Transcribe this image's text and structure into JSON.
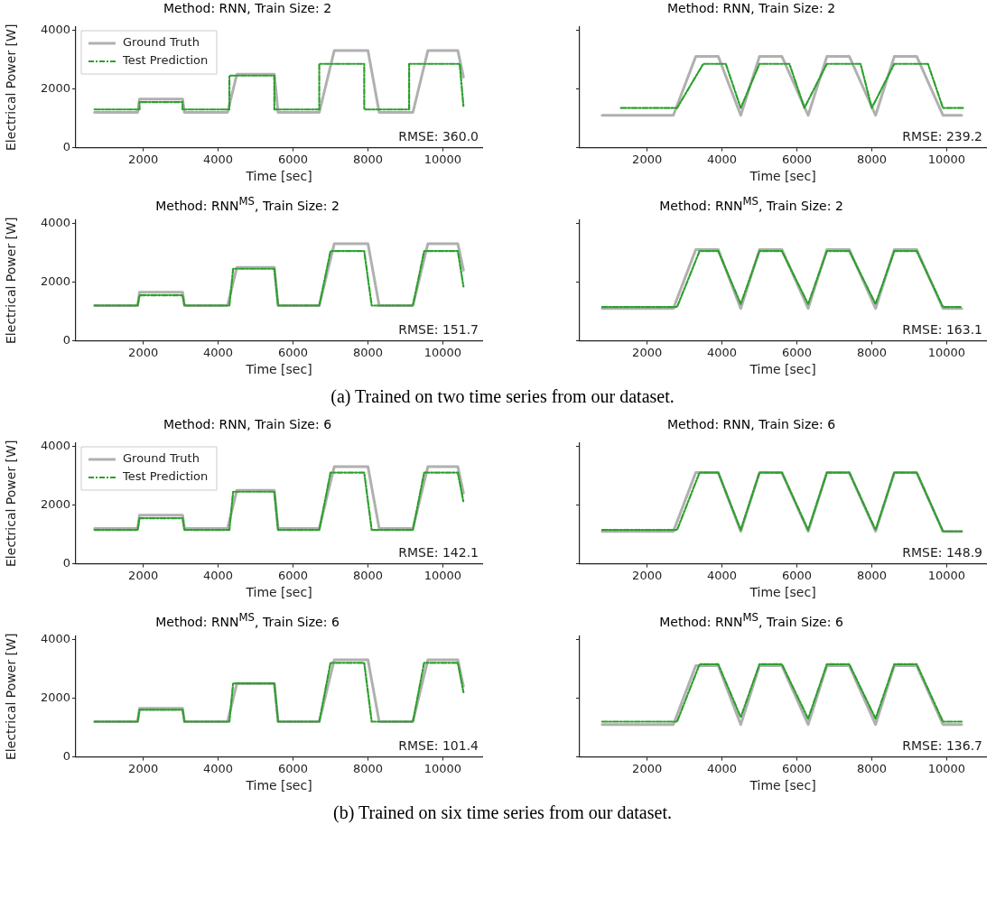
{
  "chart_data": [
    {
      "type": "line",
      "title": "Method: RNN, Train Size: 2",
      "xlabel": "Time [sec]",
      "ylabel": "Electrical Power [W]",
      "xlim": [
        200,
        11050
      ],
      "xticks": [
        2000,
        4000,
        6000,
        8000,
        10000
      ],
      "ylim": [
        0,
        4100
      ],
      "yticks": [
        0,
        2000,
        4000
      ],
      "grid": false,
      "legend": "top left",
      "annotations": [
        "RMSE: 360.0"
      ],
      "series": [
        {
          "name": "Ground Truth",
          "color": "#b0b0b0",
          "x": [
            700,
            1850,
            1900,
            3050,
            3100,
            4250,
            4500,
            5500,
            5600,
            6700,
            7100,
            8000,
            8300,
            9200,
            9600,
            10400,
            10550
          ],
          "values": [
            1200,
            1200,
            1650,
            1650,
            1200,
            1200,
            2500,
            2500,
            1200,
            1200,
            3300,
            3300,
            1200,
            1200,
            3300,
            3300,
            2400
          ]
        },
        {
          "name": "Test Prediction",
          "color": "#2ca02c",
          "line_style": "dashdot",
          "x": [
            700,
            1900,
            1900,
            3050,
            3050,
            4300,
            4300,
            5500,
            5500,
            6700,
            6700,
            7900,
            7900,
            9100,
            9100,
            10450,
            10550
          ],
          "values": [
            1300,
            1300,
            1550,
            1550,
            1300,
            1300,
            2450,
            2450,
            1300,
            1300,
            2850,
            2850,
            1300,
            1300,
            2850,
            2850,
            1400
          ]
        }
      ]
    },
    {
      "type": "line",
      "title": "Method: RNN, Train Size: 2",
      "xlabel": "Time [sec]",
      "xlim": [
        200,
        11050
      ],
      "xticks": [
        2000,
        4000,
        6000,
        8000,
        10000
      ],
      "ylim": [
        0,
        4100
      ],
      "yticks": [
        0,
        2000,
        4000
      ],
      "tick_labels": "x",
      "grid": false,
      "annotations": [
        "RMSE: 239.2"
      ],
      "series": [
        {
          "color": "#b0b0b0",
          "x": [
            800,
            2700,
            3300,
            3900,
            4500,
            5000,
            5600,
            6300,
            6800,
            7400,
            8100,
            8600,
            9200,
            9900,
            10400
          ],
          "values": [
            1100,
            1100,
            3100,
            3100,
            1100,
            3100,
            3100,
            1100,
            3100,
            3100,
            1100,
            3100,
            3100,
            1100,
            1100
          ]
        },
        {
          "color": "#2ca02c",
          "line_style": "dashdot",
          "x": [
            1300,
            2800,
            3500,
            4100,
            4500,
            5000,
            5800,
            6200,
            6800,
            7700,
            8000,
            8600,
            9500,
            9900,
            10450
          ],
          "values": [
            1350,
            1350,
            2850,
            2850,
            1350,
            2850,
            2850,
            1350,
            2850,
            2850,
            1350,
            2850,
            2850,
            1350,
            1350
          ]
        }
      ]
    },
    {
      "type": "line",
      "title": "Method: RNN$^{MS}$, Train Size: 2",
      "xlabel": "Time [sec]",
      "ylabel": "Electrical Power [W]",
      "xlim": [
        200,
        11050
      ],
      "xticks": [
        2000,
        4000,
        6000,
        8000,
        10000
      ],
      "ylim": [
        0,
        4100
      ],
      "yticks": [
        0,
        2000,
        4000
      ],
      "grid": false,
      "annotations": [
        "RMSE: 151.7"
      ],
      "series": [
        {
          "color": "#b0b0b0",
          "x": [
            700,
            1850,
            1900,
            3050,
            3100,
            4250,
            4500,
            5500,
            5600,
            6700,
            7100,
            8000,
            8300,
            9200,
            9600,
            10400,
            10550
          ],
          "values": [
            1200,
            1200,
            1650,
            1650,
            1200,
            1200,
            2500,
            2500,
            1200,
            1200,
            3300,
            3300,
            1200,
            1200,
            3300,
            3300,
            2400
          ]
        },
        {
          "color": "#2ca02c",
          "line_style": "dashdot",
          "x": [
            700,
            1850,
            1900,
            3050,
            3100,
            4300,
            4400,
            5500,
            5600,
            6700,
            7000,
            7900,
            8100,
            9200,
            9500,
            10400,
            10550
          ],
          "values": [
            1200,
            1200,
            1550,
            1550,
            1200,
            1200,
            2450,
            2450,
            1200,
            1200,
            3050,
            3050,
            1200,
            1200,
            3050,
            3050,
            1850
          ]
        }
      ]
    },
    {
      "type": "line",
      "title": "Method: RNN$^{MS}$, Train Size: 2",
      "xlabel": "Time [sec]",
      "xlim": [
        200,
        11050
      ],
      "xticks": [
        2000,
        4000,
        6000,
        8000,
        10000
      ],
      "ylim": [
        0,
        4100
      ],
      "yticks": [
        0,
        2000,
        4000
      ],
      "tick_labels": "x",
      "grid": false,
      "annotations": [
        "RMSE: 163.1",
        "(a) Trained on two time series from our dataset."
      ],
      "series": [
        {
          "color": "#b0b0b0",
          "x": [
            800,
            2700,
            3300,
            3900,
            4500,
            5000,
            5600,
            6300,
            6800,
            7400,
            8100,
            8600,
            9200,
            9900,
            10400
          ],
          "values": [
            1100,
            1100,
            3100,
            3100,
            1100,
            3100,
            3100,
            1100,
            3100,
            3100,
            1100,
            3100,
            3100,
            1100,
            1100
          ]
        },
        {
          "color": "#2ca02c",
          "line_style": "dashdot",
          "x": [
            800,
            2800,
            3400,
            3900,
            4500,
            5000,
            5600,
            6300,
            6800,
            7400,
            8100,
            8600,
            9200,
            9900,
            10400
          ],
          "values": [
            1150,
            1150,
            3050,
            3050,
            1250,
            3050,
            3050,
            1250,
            3050,
            3050,
            1250,
            3050,
            3050,
            1150,
            1150
          ]
        }
      ]
    },
    {
      "type": "line",
      "title": "Method: RNN, Train Size: 6",
      "xlabel": "Time [sec]",
      "ylabel": "Electrical Power [W]",
      "xlim": [
        200,
        11050
      ],
      "xticks": [
        2000,
        4000,
        6000,
        8000,
        10000
      ],
      "ylim": [
        0,
        4100
      ],
      "yticks": [
        0,
        2000,
        4000
      ],
      "grid": false,
      "legend": "top left",
      "annotations": [
        "RMSE: 142.1"
      ],
      "series": [
        {
          "name": "Ground Truth",
          "color": "#b0b0b0",
          "x": [
            700,
            1850,
            1900,
            3050,
            3100,
            4250,
            4500,
            5500,
            5600,
            6700,
            7100,
            8000,
            8300,
            9200,
            9600,
            10400,
            10550
          ],
          "values": [
            1200,
            1200,
            1650,
            1650,
            1200,
            1200,
            2500,
            2500,
            1200,
            1200,
            3300,
            3300,
            1200,
            1200,
            3300,
            3300,
            2400
          ]
        },
        {
          "name": "Test Prediction",
          "color": "#2ca02c",
          "line_style": "dashdot",
          "x": [
            700,
            1850,
            1900,
            3050,
            3100,
            4300,
            4400,
            5500,
            5600,
            6700,
            7000,
            7900,
            8100,
            9200,
            9500,
            10400,
            10550
          ],
          "values": [
            1150,
            1150,
            1550,
            1550,
            1150,
            1150,
            2450,
            2450,
            1150,
            1150,
            3100,
            3100,
            1150,
            1150,
            3100,
            3100,
            2100
          ]
        }
      ]
    },
    {
      "type": "line",
      "title": "Method: RNN, Train Size: 6",
      "xlabel": "Time [sec]",
      "xlim": [
        200,
        11050
      ],
      "xticks": [
        2000,
        4000,
        6000,
        8000,
        10000
      ],
      "ylim": [
        0,
        4100
      ],
      "yticks": [
        0,
        2000,
        4000
      ],
      "tick_labels": "x",
      "grid": false,
      "annotations": [
        "RMSE: 148.9"
      ],
      "series": [
        {
          "color": "#b0b0b0",
          "x": [
            800,
            2700,
            3300,
            3900,
            4500,
            5000,
            5600,
            6300,
            6800,
            7400,
            8100,
            8600,
            9200,
            9900,
            10400
          ],
          "values": [
            1100,
            1100,
            3100,
            3100,
            1100,
            3100,
            3100,
            1100,
            3100,
            3100,
            1100,
            3100,
            3100,
            1100,
            1100
          ]
        },
        {
          "color": "#2ca02c",
          "line_style": "dashdot",
          "x": [
            800,
            2800,
            3400,
            3900,
            4500,
            5000,
            5600,
            6300,
            6800,
            7400,
            8100,
            8600,
            9200,
            9900,
            10400
          ],
          "values": [
            1150,
            1150,
            3100,
            3100,
            1150,
            3100,
            3100,
            1150,
            3100,
            3100,
            1150,
            3100,
            3100,
            1100,
            1100
          ]
        }
      ]
    },
    {
      "type": "line",
      "title": "Method: RNN$^{MS}$, Train Size: 6",
      "xlabel": "Time [sec]",
      "ylabel": "Electrical Power [W]",
      "xlim": [
        200,
        11050
      ],
      "xticks": [
        2000,
        4000,
        6000,
        8000,
        10000
      ],
      "ylim": [
        0,
        4100
      ],
      "yticks": [
        0,
        2000,
        4000
      ],
      "grid": false,
      "annotations": [
        "RMSE: 101.4"
      ],
      "series": [
        {
          "color": "#b0b0b0",
          "x": [
            700,
            1850,
            1900,
            3050,
            3100,
            4250,
            4500,
            5500,
            5600,
            6700,
            7100,
            8000,
            8300,
            9200,
            9600,
            10400,
            10550
          ],
          "values": [
            1200,
            1200,
            1650,
            1650,
            1200,
            1200,
            2500,
            2500,
            1200,
            1200,
            3300,
            3300,
            1200,
            1200,
            3300,
            3300,
            2400
          ]
        },
        {
          "color": "#2ca02c",
          "line_style": "dashdot",
          "x": [
            700,
            1850,
            1900,
            3050,
            3100,
            4300,
            4400,
            5500,
            5600,
            6700,
            7000,
            7900,
            8100,
            9200,
            9500,
            10400,
            10550
          ],
          "values": [
            1200,
            1200,
            1600,
            1600,
            1200,
            1200,
            2500,
            2500,
            1200,
            1200,
            3200,
            3200,
            1200,
            1200,
            3200,
            3200,
            2200
          ]
        }
      ]
    },
    {
      "type": "line",
      "title": "Method: RNN$^{MS}$, Train Size: 6",
      "xlabel": "Time [sec]",
      "xlim": [
        200,
        11050
      ],
      "xticks": [
        2000,
        4000,
        6000,
        8000,
        10000
      ],
      "ylim": [
        0,
        4100
      ],
      "yticks": [
        0,
        2000,
        4000
      ],
      "tick_labels": "x",
      "grid": false,
      "annotations": [
        "RMSE: 136.7",
        "(b) Trained on six time series from our dataset."
      ],
      "series": [
        {
          "color": "#b0b0b0",
          "x": [
            800,
            2700,
            3300,
            3900,
            4500,
            5000,
            5600,
            6300,
            6800,
            7400,
            8100,
            8600,
            9200,
            9900,
            10400
          ],
          "values": [
            1100,
            1100,
            3100,
            3100,
            1100,
            3100,
            3100,
            1100,
            3100,
            3100,
            1100,
            3100,
            3100,
            1100,
            1100
          ]
        },
        {
          "color": "#2ca02c",
          "line_style": "dashdot",
          "x": [
            800,
            2800,
            3400,
            3900,
            4500,
            5000,
            5600,
            6300,
            6800,
            7400,
            8100,
            8600,
            9200,
            9900,
            10400
          ],
          "values": [
            1200,
            1200,
            3150,
            3150,
            1350,
            3150,
            3150,
            1300,
            3150,
            3150,
            1300,
            3150,
            3150,
            1200,
            1200
          ]
        }
      ]
    }
  ]
}
